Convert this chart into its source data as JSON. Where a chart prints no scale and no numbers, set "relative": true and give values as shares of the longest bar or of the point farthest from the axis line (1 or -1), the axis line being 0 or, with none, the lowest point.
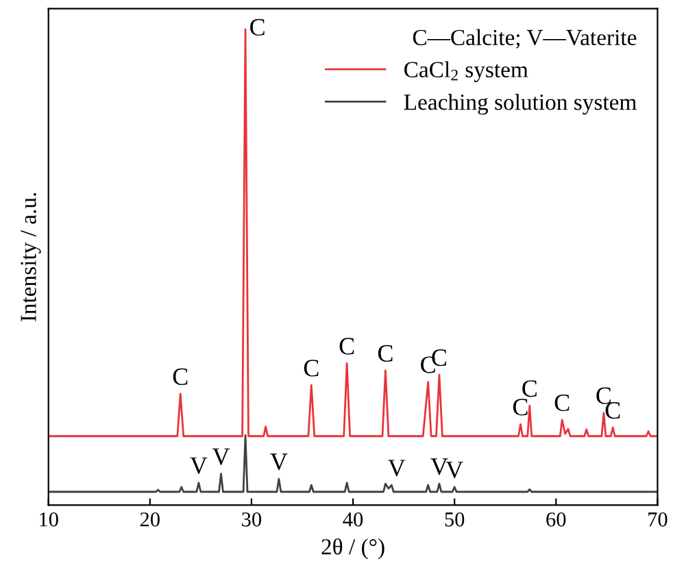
{
  "chart_data": {
    "type": "line",
    "relative": true,
    "xlabel": "2θ / (°)",
    "ylabel": "Intensity / a.u.",
    "xlim": [
      10,
      70
    ],
    "xticks": [
      10,
      20,
      30,
      40,
      50,
      60,
      70
    ],
    "legend": "top right",
    "legend_title": "C—Calcite; V—Vaterite",
    "grid": false,
    "marker": "none",
    "line_style": "solid",
    "series": [
      {
        "name": "CaCl$_{2}$ system",
        "color": "#e8333a",
        "x": [
          10,
          22.7,
          23.0,
          23.3,
          29.1,
          29.4,
          29.7,
          31.2,
          31.4,
          31.6,
          35.6,
          35.9,
          36.2,
          39.1,
          39.4,
          39.7,
          42.9,
          43.2,
          43.5,
          46.9,
          47.1,
          47.4,
          47.7,
          48.2,
          48.5,
          48.8,
          56.3,
          56.5,
          56.7,
          57.2,
          57.4,
          57.6,
          60.4,
          60.6,
          60.9,
          61.2,
          61.4,
          62.8,
          63.0,
          63.2,
          64.5,
          64.7,
          64.9,
          65.4,
          65.6,
          65.8,
          68.9,
          69.1,
          69.3,
          70
        ],
        "values": [
          0.145,
          0.145,
          0.234,
          0.145,
          0.145,
          1,
          0.145,
          0.145,
          0.165,
          0.145,
          0.145,
          0.252,
          0.145,
          0.145,
          0.298,
          0.145,
          0.145,
          0.283,
          0.145,
          0.145,
          0.19,
          0.259,
          0.145,
          0.145,
          0.274,
          0.145,
          0.145,
          0.17,
          0.145,
          0.145,
          0.209,
          0.145,
          0.145,
          0.179,
          0.15,
          0.16,
          0.145,
          0.145,
          0.159,
          0.145,
          0.145,
          0.194,
          0.145,
          0.145,
          0.163,
          0.145,
          0.145,
          0.155,
          0.145,
          0.145
        ]
      },
      {
        "name": "Leaching solution system",
        "color": "#404040",
        "x": [
          10,
          20.6,
          20.8,
          21.0,
          22.9,
          23.1,
          23.3,
          24.6,
          24.8,
          25.0,
          26.8,
          27.0,
          27.2,
          29.2,
          29.4,
          29.6,
          32.5,
          32.7,
          32.9,
          35.7,
          35.9,
          36.1,
          39.2,
          39.4,
          39.6,
          43.0,
          43.2,
          43.5,
          43.8,
          44.0,
          47.2,
          47.4,
          47.6,
          48.3,
          48.5,
          48.7,
          49.8,
          50.0,
          50.2,
          57.2,
          57.4,
          57.6,
          70
        ],
        "values": [
          0.028,
          0.028,
          0.032,
          0.028,
          0.028,
          0.038,
          0.028,
          0.028,
          0.047,
          0.028,
          0.028,
          0.066,
          0.028,
          0.028,
          0.147,
          0.028,
          0.028,
          0.055,
          0.028,
          0.028,
          0.042,
          0.028,
          0.028,
          0.047,
          0.028,
          0.028,
          0.045,
          0.035,
          0.042,
          0.028,
          0.028,
          0.042,
          0.028,
          0.028,
          0.045,
          0.028,
          0.028,
          0.038,
          0.028,
          0.028,
          0.033,
          0.028,
          0.028
        ]
      }
    ],
    "annotations": [
      {
        "text": "C",
        "x": 23.0,
        "y": 0.234
      },
      {
        "text": "C",
        "x": 29.4,
        "y": 1
      },
      {
        "text": "C",
        "x": 35.9,
        "y": 0.252
      },
      {
        "text": "C",
        "x": 39.4,
        "y": 0.298
      },
      {
        "text": "C",
        "x": 43.2,
        "y": 0.283
      },
      {
        "text": "C",
        "x": 47.4,
        "y": 0.259
      },
      {
        "text": "C",
        "x": 48.5,
        "y": 0.274
      },
      {
        "text": "C",
        "x": 56.5,
        "y": 0.17
      },
      {
        "text": "C",
        "x": 57.4,
        "y": 0.209
      },
      {
        "text": "C",
        "x": 60.6,
        "y": 0.179
      },
      {
        "text": "C",
        "x": 64.7,
        "y": 0.194
      },
      {
        "text": "C",
        "x": 65.6,
        "y": 0.163
      },
      {
        "text": "V",
        "x": 24.8,
        "y": 0.047
      },
      {
        "text": "V",
        "x": 27.0,
        "y": 0.066
      },
      {
        "text": "V",
        "x": 32.7,
        "y": 0.055
      },
      {
        "text": "V",
        "x": 44.3,
        "y": 0.042
      },
      {
        "text": "V",
        "x": 48.5,
        "y": 0.045
      },
      {
        "text": "V",
        "x": 50.0,
        "y": 0.038
      }
    ]
  }
}
